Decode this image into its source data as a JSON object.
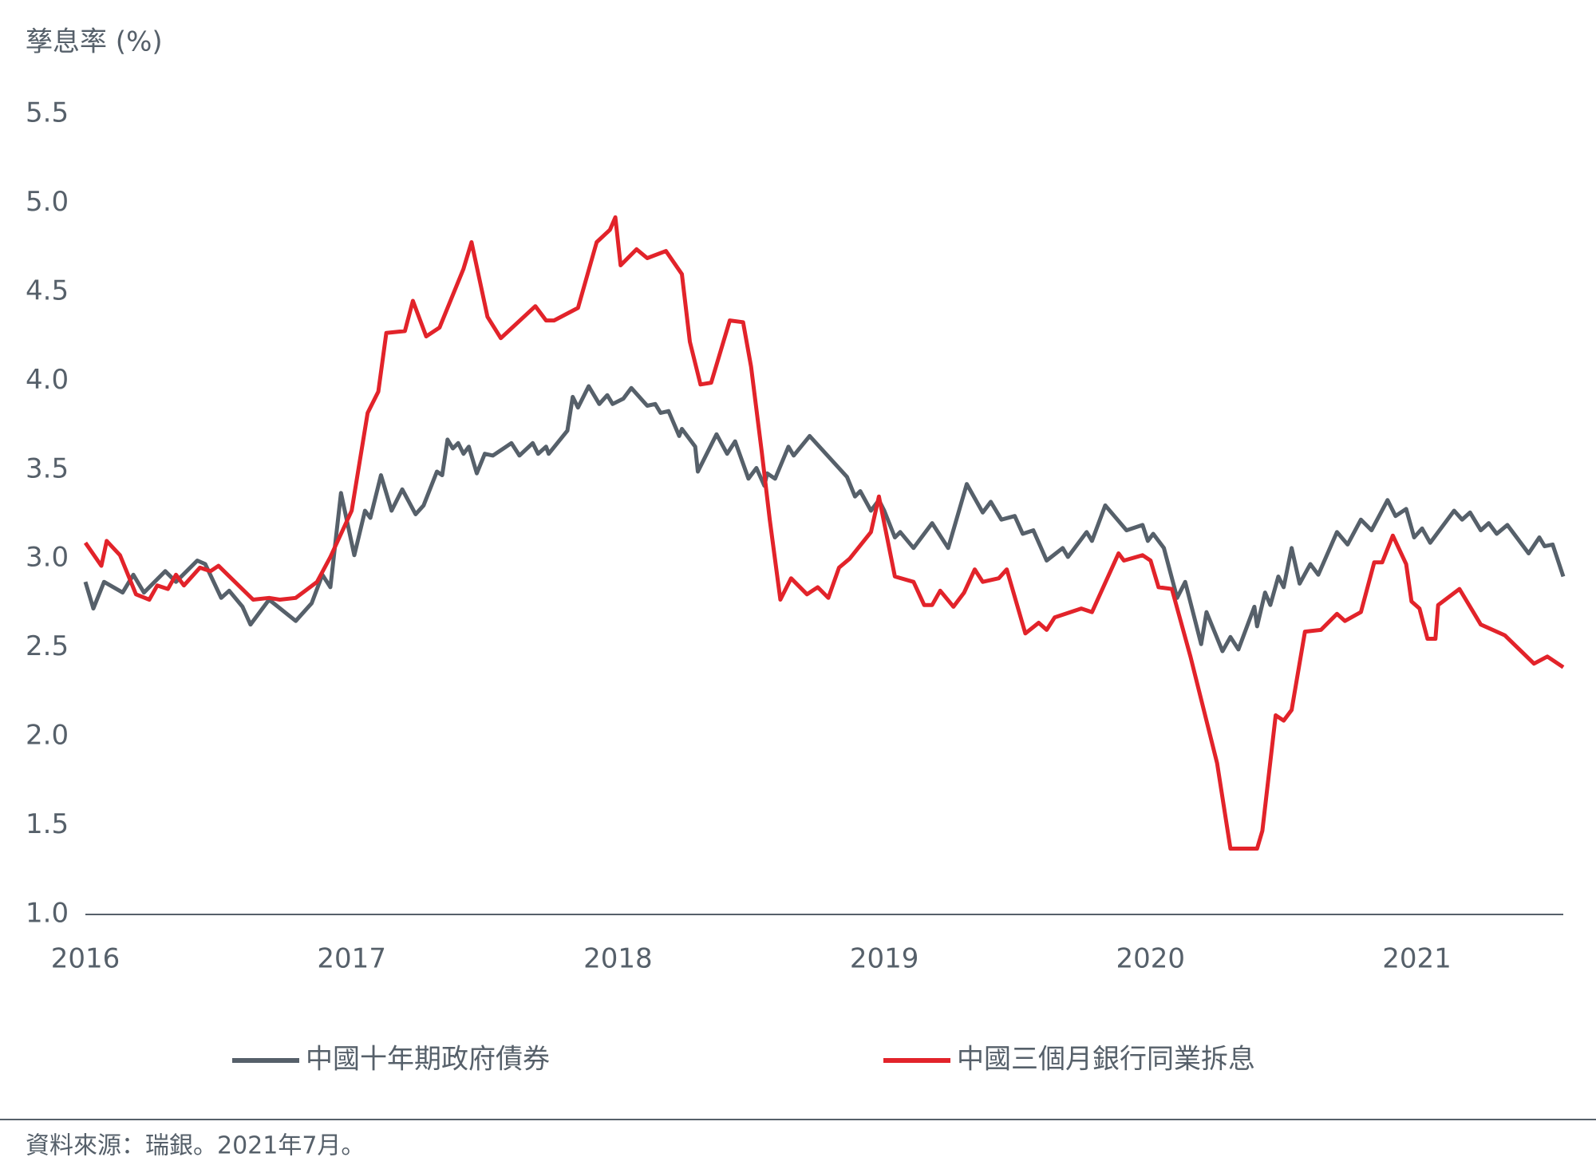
{
  "chart_data": {
    "type": "line",
    "y_label": "孳息率 (%)",
    "source": "資料來源：瑞銀。2021年7月。",
    "xlim": [
      2016,
      2021.55
    ],
    "xticks": [
      2016,
      2017,
      2018,
      2019,
      2020,
      2021
    ],
    "ylim": [
      1,
      5.5
    ],
    "yticks": [
      1.0,
      1.5,
      2.0,
      2.5,
      3.0,
      3.5,
      4.0,
      4.5,
      5.0,
      5.5
    ],
    "grid": false,
    "legend": "bottom",
    "series": [
      {
        "name": "中國十年期政府債券",
        "color": "#56606a",
        "x": [
          2016.0,
          2016.03,
          2016.07,
          2016.14,
          2016.18,
          2016.22,
          2016.3,
          2016.34,
          2016.42,
          2016.45,
          2016.51,
          2016.54,
          2016.59,
          2016.62,
          2016.69,
          2016.79,
          2016.85,
          2016.89,
          2016.92,
          2016.96,
          2017.01,
          2017.05,
          2017.07,
          2017.11,
          2017.15,
          2017.19,
          2017.24,
          2017.27,
          2017.32,
          2017.34,
          2017.36,
          2017.38,
          2017.4,
          2017.42,
          2017.44,
          2017.47,
          2017.5,
          2017.53,
          2017.6,
          2017.63,
          2017.68,
          2017.7,
          2017.73,
          2017.74,
          2017.81,
          2017.83,
          2017.85,
          2017.89,
          2017.93,
          2017.96,
          2017.98,
          2018.02,
          2018.05,
          2018.11,
          2018.14,
          2018.16,
          2018.19,
          2018.23,
          2018.24,
          2018.29,
          2018.3,
          2018.37,
          2018.41,
          2018.44,
          2018.49,
          2018.52,
          2018.55,
          2018.56,
          2018.59,
          2018.64,
          2018.66,
          2018.72,
          2018.86,
          2018.89,
          2018.91,
          2018.95,
          2018.98,
          2019.0,
          2019.04,
          2019.06,
          2019.11,
          2019.18,
          2019.24,
          2019.31,
          2019.37,
          2019.4,
          2019.44,
          2019.49,
          2019.52,
          2019.56,
          2019.61,
          2019.67,
          2019.69,
          2019.76,
          2019.78,
          2019.83,
          2019.91,
          2019.97,
          2019.99,
          2020.01,
          2020.05,
          2020.1,
          2020.13,
          2020.19,
          2020.21,
          2020.27,
          2020.3,
          2020.33,
          2020.39,
          2020.4,
          2020.43,
          2020.45,
          2020.48,
          2020.5,
          2020.53,
          2020.56,
          2020.6,
          2020.63,
          2020.7,
          2020.74,
          2020.79,
          2020.83,
          2020.89,
          2020.92,
          2020.96,
          2020.99,
          2021.02,
          2021.05,
          2021.14,
          2021.17,
          2021.2,
          2021.24,
          2021.27,
          2021.3,
          2021.34,
          2021.42,
          2021.46,
          2021.48,
          2021.51,
          2021.55
        ],
        "values": [
          2.87,
          2.72,
          2.87,
          2.81,
          2.91,
          2.81,
          2.93,
          2.87,
          2.99,
          2.97,
          2.78,
          2.82,
          2.73,
          2.63,
          2.77,
          2.65,
          2.75,
          2.91,
          2.84,
          3.37,
          3.02,
          3.27,
          3.23,
          3.47,
          3.27,
          3.39,
          3.25,
          3.3,
          3.49,
          3.47,
          3.67,
          3.62,
          3.65,
          3.59,
          3.63,
          3.48,
          3.59,
          3.58,
          3.65,
          3.58,
          3.65,
          3.59,
          3.63,
          3.59,
          3.72,
          3.91,
          3.85,
          3.97,
          3.87,
          3.92,
          3.87,
          3.9,
          3.96,
          3.86,
          3.87,
          3.82,
          3.83,
          3.69,
          3.73,
          3.63,
          3.49,
          3.7,
          3.59,
          3.66,
          3.45,
          3.51,
          3.41,
          3.48,
          3.45,
          3.63,
          3.58,
          3.69,
          3.46,
          3.35,
          3.38,
          3.27,
          3.33,
          3.27,
          3.12,
          3.15,
          3.06,
          3.2,
          3.06,
          3.42,
          3.26,
          3.32,
          3.22,
          3.24,
          3.14,
          3.16,
          2.99,
          3.06,
          3.01,
          3.15,
          3.1,
          3.3,
          3.16,
          3.19,
          3.1,
          3.14,
          3.06,
          2.78,
          2.87,
          2.52,
          2.7,
          2.48,
          2.56,
          2.49,
          2.73,
          2.62,
          2.81,
          2.74,
          2.9,
          2.84,
          3.06,
          2.86,
          2.97,
          2.91,
          3.15,
          3.08,
          3.22,
          3.16,
          3.33,
          3.24,
          3.28,
          3.12,
          3.17,
          3.09,
          3.27,
          3.22,
          3.26,
          3.16,
          3.2,
          3.14,
          3.19,
          3.03,
          3.12,
          3.07,
          3.08,
          2.9
        ]
      },
      {
        "name": "中國三個月銀行同業拆息",
        "color": "#e2232a",
        "x": [
          2016.0,
          2016.06,
          2016.08,
          2016.13,
          2016.19,
          2016.24,
          2016.27,
          2016.31,
          2016.34,
          2016.37,
          2016.43,
          2016.47,
          2016.5,
          2016.63,
          2016.69,
          2016.73,
          2016.79,
          2016.87,
          2016.92,
          2017.0,
          2017.06,
          2017.1,
          2017.13,
          2017.2,
          2017.23,
          2017.28,
          2017.33,
          2017.42,
          2017.45,
          2017.51,
          2017.56,
          2017.69,
          2017.73,
          2017.76,
          2017.85,
          2017.92,
          2017.97,
          2017.99,
          2018.01,
          2018.07,
          2018.11,
          2018.18,
          2018.24,
          2018.27,
          2018.31,
          2018.35,
          2018.42,
          2018.47,
          2018.5,
          2018.54,
          2018.57,
          2018.61,
          2018.65,
          2018.71,
          2018.75,
          2018.79,
          2018.83,
          2018.87,
          2018.95,
          2018.98,
          2019.04,
          2019.11,
          2019.15,
          2019.18,
          2019.21,
          2019.26,
          2019.3,
          2019.34,
          2019.37,
          2019.43,
          2019.46,
          2019.53,
          2019.58,
          2019.61,
          2019.64,
          2019.74,
          2019.78,
          2019.88,
          2019.9,
          2019.97,
          2020.0,
          2020.03,
          2020.08,
          2020.15,
          2020.17,
          2020.25,
          2020.3,
          2020.4,
          2020.42,
          2020.47,
          2020.5,
          2020.53,
          2020.58,
          2020.64,
          2020.7,
          2020.73,
          2020.79,
          2020.84,
          2020.87,
          2020.91,
          2020.96,
          2020.98,
          2021.01,
          2021.04,
          2021.07,
          2021.08,
          2021.16,
          2021.24,
          2021.33,
          2021.44,
          2021.49,
          2021.55
        ],
        "values": [
          3.09,
          2.96,
          3.1,
          3.02,
          2.8,
          2.77,
          2.85,
          2.83,
          2.91,
          2.85,
          2.95,
          2.93,
          2.96,
          2.77,
          2.78,
          2.77,
          2.78,
          2.87,
          3.01,
          3.27,
          3.82,
          3.94,
          4.27,
          4.28,
          4.45,
          4.25,
          4.3,
          4.63,
          4.78,
          4.36,
          4.24,
          4.42,
          4.34,
          4.34,
          4.41,
          4.78,
          4.85,
          4.92,
          4.65,
          4.74,
          4.69,
          4.73,
          4.6,
          4.22,
          3.98,
          3.99,
          4.34,
          4.33,
          4.08,
          3.6,
          3.22,
          2.77,
          2.89,
          2.8,
          2.84,
          2.78,
          2.95,
          3.0,
          3.15,
          3.35,
          2.9,
          2.87,
          2.74,
          2.74,
          2.82,
          2.73,
          2.81,
          2.94,
          2.87,
          2.89,
          2.94,
          2.58,
          2.64,
          2.6,
          2.67,
          2.72,
          2.7,
          3.03,
          2.99,
          3.02,
          2.99,
          2.84,
          2.83,
          2.45,
          2.33,
          1.85,
          1.37,
          1.37,
          1.47,
          2.12,
          2.09,
          2.15,
          2.59,
          2.6,
          2.69,
          2.65,
          2.7,
          2.98,
          2.98,
          3.13,
          2.97,
          2.76,
          2.72,
          2.55,
          2.55,
          2.74,
          2.83,
          2.63,
          2.57,
          2.41,
          2.45,
          2.39
        ]
      }
    ]
  }
}
